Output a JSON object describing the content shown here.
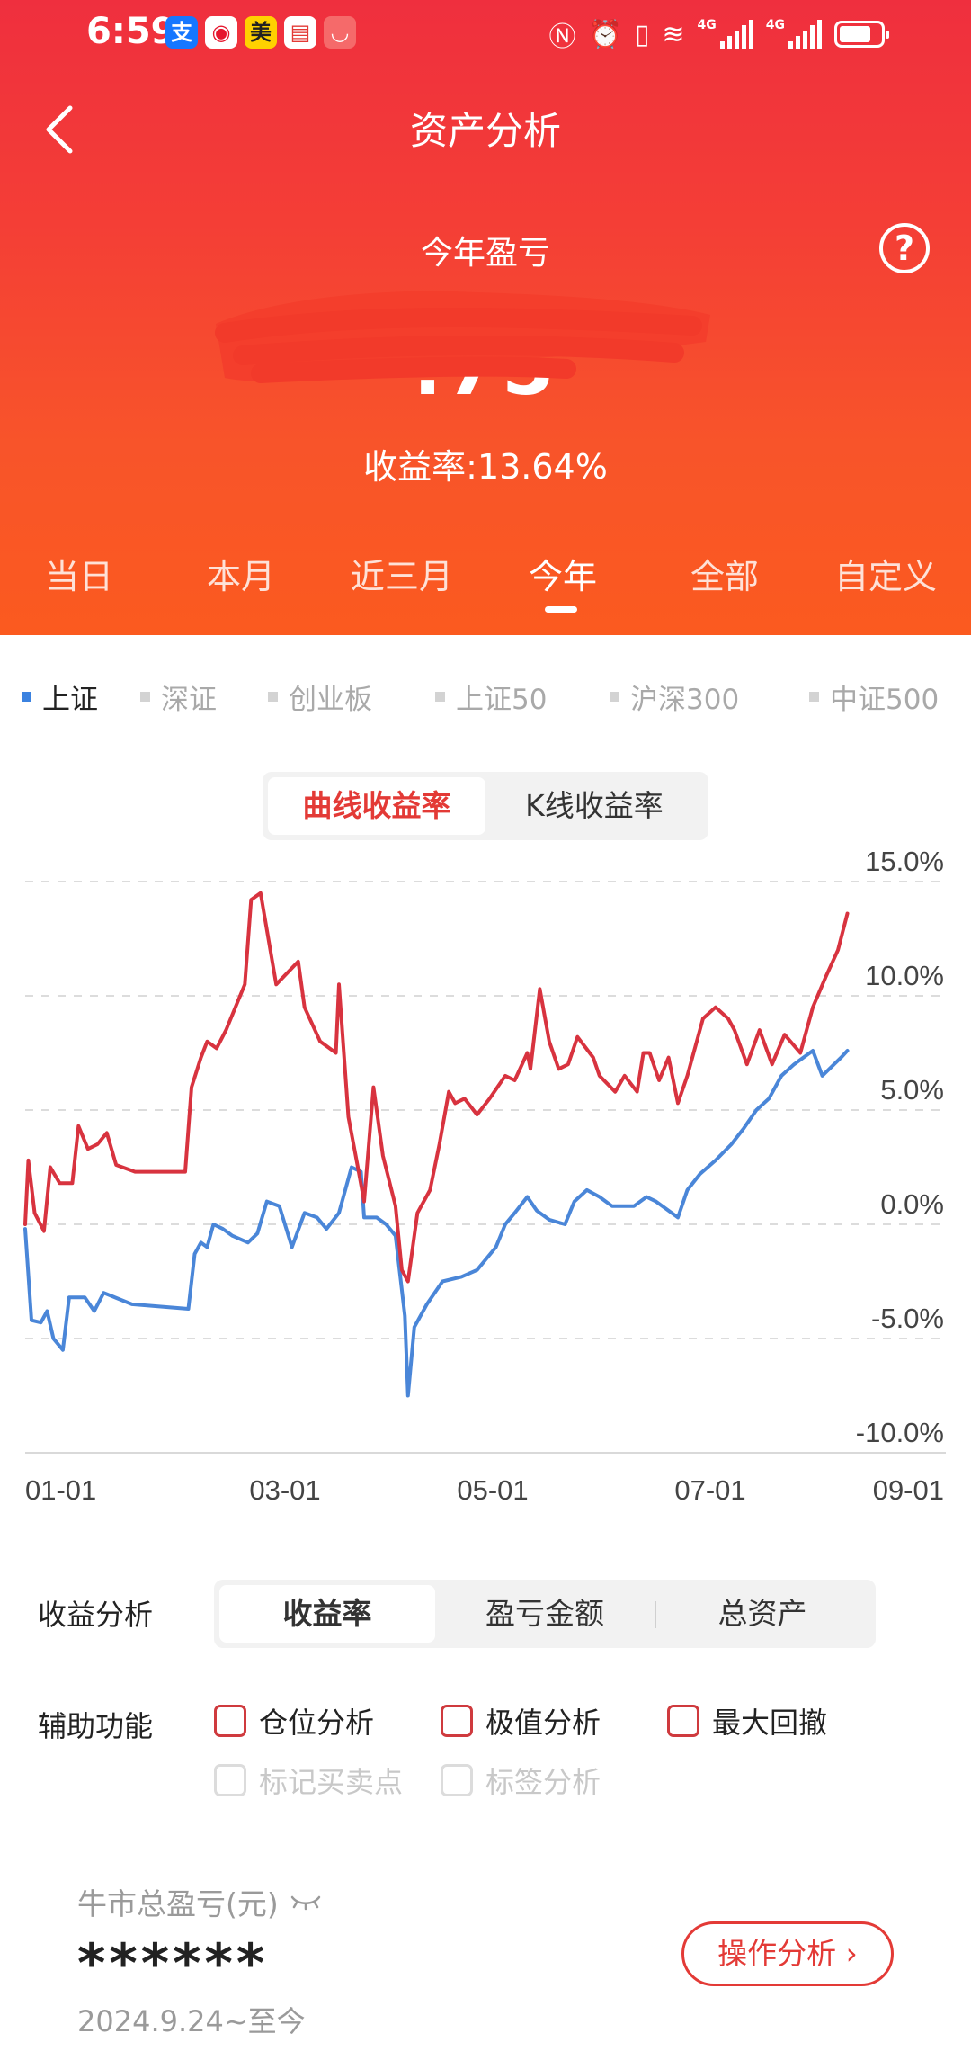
{
  "status_bar": {
    "time": "6:59",
    "apps": [
      {
        "name": "alipay-icon",
        "glyph": "支",
        "bg": "#1677ff",
        "fg": "#ffffff"
      },
      {
        "name": "weibo-icon",
        "glyph": "◉",
        "bg": "#ffffff",
        "fg": "#e6162d"
      },
      {
        "name": "meituan-icon",
        "glyph": "美",
        "bg": "#ffd100",
        "fg": "#222222"
      },
      {
        "name": "reader-icon",
        "glyph": "▤",
        "bg": "#ffffff",
        "fg": "#e33a36"
      },
      {
        "name": "huawei-store-icon",
        "glyph": "◡",
        "bg": "#f56a6a",
        "fg": "#ffffff"
      }
    ],
    "network_label_1": "4G",
    "network_label_2": "4G",
    "battery_level": 0.7
  },
  "nav": {
    "title": "资产分析"
  },
  "summary": {
    "label": "今年盈亏",
    "amount_visible": "           .75",
    "return_rate": "收益率:13.64%"
  },
  "period_tabs": [
    "当日",
    "本月",
    "近三月",
    "今年",
    "全部",
    "自定义"
  ],
  "period_tabs_active": 3,
  "indices": [
    "上证",
    "深证",
    "创业板",
    "上证50",
    "沪深300",
    "中证500"
  ],
  "indices_active": 0,
  "chart_toggle": {
    "active": "曲线收益率",
    "inactive": "K线收益率"
  },
  "chart_data": {
    "type": "line",
    "title": "",
    "xlabel": "",
    "ylabel": "",
    "x_tick_labels": [
      "01-01",
      "03-01",
      "05-01",
      "07-01",
      "09-01"
    ],
    "y_tick_labels": [
      "15.0%",
      "10.0%",
      "5.0%",
      "0.0%",
      "-5.0%",
      "-10.0%"
    ],
    "ylim": [
      -10,
      15
    ],
    "xlim": [
      "01-01",
      "09-01"
    ],
    "grid": true,
    "series": [
      {
        "color": "#d8333f",
        "points": [
          [
            "01-01",
            0.0
          ],
          [
            "01-02",
            2.8
          ],
          [
            "01-04",
            0.5
          ],
          [
            "01-07",
            -0.3
          ],
          [
            "01-09",
            2.5
          ],
          [
            "01-12",
            1.8
          ],
          [
            "01-16",
            1.8
          ],
          [
            "01-18",
            4.3
          ],
          [
            "01-21",
            3.3
          ],
          [
            "01-24",
            3.5
          ],
          [
            "01-27",
            4.0
          ],
          [
            "01-30",
            2.6
          ],
          [
            "02-05",
            2.3
          ],
          [
            "02-21",
            2.3
          ],
          [
            "02-23",
            6.0
          ],
          [
            "02-26",
            7.3
          ],
          [
            "02-28",
            8.0
          ],
          [
            "03-02",
            7.7
          ],
          [
            "03-05",
            8.5
          ],
          [
            "03-11",
            10.5
          ],
          [
            "03-13",
            14.2
          ],
          [
            "03-16",
            14.5
          ],
          [
            "03-21",
            10.5
          ],
          [
            "03-28",
            11.5
          ],
          [
            "03-30",
            9.5
          ],
          [
            "04-04",
            8.0
          ],
          [
            "04-09",
            7.5
          ],
          [
            "04-10",
            10.5
          ],
          [
            "04-13",
            4.7
          ],
          [
            "04-16",
            2.5
          ],
          [
            "04-18",
            1.0
          ],
          [
            "04-21",
            6.0
          ],
          [
            "04-24",
            3.0
          ],
          [
            "04-28",
            0.8
          ],
          [
            "04-30",
            -2.0
          ],
          [
            "05-02",
            -2.5
          ],
          [
            "05-05",
            0.5
          ],
          [
            "05-09",
            1.5
          ],
          [
            "05-12",
            3.5
          ],
          [
            "05-15",
            5.8
          ],
          [
            "05-17",
            5.3
          ],
          [
            "05-20",
            5.5
          ],
          [
            "05-24",
            4.8
          ],
          [
            "05-28",
            5.5
          ],
          [
            "06-02",
            6.5
          ],
          [
            "06-05",
            6.3
          ],
          [
            "06-09",
            7.5
          ],
          [
            "06-10",
            6.8
          ],
          [
            "06-13",
            10.3
          ],
          [
            "06-16",
            8.0
          ],
          [
            "06-19",
            6.8
          ],
          [
            "06-22",
            7.0
          ],
          [
            "06-25",
            8.2
          ],
          [
            "06-30",
            7.3
          ],
          [
            "07-02",
            6.5
          ],
          [
            "07-07",
            5.8
          ],
          [
            "07-10",
            6.5
          ],
          [
            "07-14",
            5.8
          ],
          [
            "07-16",
            7.5
          ],
          [
            "07-18",
            7.5
          ],
          [
            "07-21",
            6.3
          ],
          [
            "07-24",
            7.3
          ],
          [
            "07-27",
            5.3
          ],
          [
            "07-30",
            6.5
          ],
          [
            "08-04",
            9.0
          ],
          [
            "08-08",
            9.5
          ],
          [
            "08-12",
            9.0
          ],
          [
            "08-14",
            8.5
          ],
          [
            "08-18",
            7.0
          ],
          [
            "08-22",
            8.5
          ],
          [
            "08-26",
            7.0
          ],
          [
            "08-30",
            8.3
          ],
          [
            "09-04",
            7.5
          ],
          [
            "09-08",
            9.5
          ],
          [
            "09-12",
            10.8
          ],
          [
            "09-16",
            12.0
          ],
          [
            "09-19",
            13.6
          ]
        ]
      },
      {
        "color": "#4a86d8",
        "points": [
          [
            "01-01",
            -0.2
          ],
          [
            "01-03",
            -4.2
          ],
          [
            "01-06",
            -4.3
          ],
          [
            "01-08",
            -3.8
          ],
          [
            "01-10",
            -5.0
          ],
          [
            "01-13",
            -5.5
          ],
          [
            "01-15",
            -3.2
          ],
          [
            "01-20",
            -3.2
          ],
          [
            "01-23",
            -3.8
          ],
          [
            "01-26",
            -3.0
          ],
          [
            "02-04",
            -3.5
          ],
          [
            "02-22",
            -3.7
          ],
          [
            "02-24",
            -1.3
          ],
          [
            "02-26",
            -0.8
          ],
          [
            "02-28",
            -1.0
          ],
          [
            "03-01",
            0.0
          ],
          [
            "03-04",
            -0.2
          ],
          [
            "03-07",
            -0.5
          ],
          [
            "03-12",
            -0.8
          ],
          [
            "03-15",
            -0.4
          ],
          [
            "03-18",
            1.0
          ],
          [
            "03-22",
            0.8
          ],
          [
            "03-26",
            -1.0
          ],
          [
            "03-30",
            0.5
          ],
          [
            "04-03",
            0.3
          ],
          [
            "04-06",
            -0.2
          ],
          [
            "04-10",
            0.5
          ],
          [
            "04-14",
            2.5
          ],
          [
            "04-17",
            2.3
          ],
          [
            "04-18",
            0.3
          ],
          [
            "04-22",
            0.3
          ],
          [
            "04-25",
            0.0
          ],
          [
            "04-28",
            -0.5
          ],
          [
            "05-01",
            -4.0
          ],
          [
            "05-02",
            -7.5
          ],
          [
            "05-04",
            -4.5
          ],
          [
            "05-08",
            -3.5
          ],
          [
            "05-13",
            -2.5
          ],
          [
            "05-19",
            -2.3
          ],
          [
            "05-24",
            -2.0
          ],
          [
            "05-30",
            -1.0
          ],
          [
            "06-02",
            0.0
          ],
          [
            "06-05",
            0.5
          ],
          [
            "06-09",
            1.2
          ],
          [
            "06-12",
            0.6
          ],
          [
            "06-16",
            0.2
          ],
          [
            "06-21",
            0.0
          ],
          [
            "06-24",
            1.0
          ],
          [
            "06-28",
            1.5
          ],
          [
            "07-02",
            1.2
          ],
          [
            "07-06",
            0.8
          ],
          [
            "07-09",
            0.8
          ],
          [
            "07-13",
            0.8
          ],
          [
            "07-17",
            1.2
          ],
          [
            "07-20",
            1.0
          ],
          [
            "07-25",
            0.5
          ],
          [
            "07-27",
            0.3
          ],
          [
            "07-30",
            1.5
          ],
          [
            "08-03",
            2.2
          ],
          [
            "08-08",
            2.8
          ],
          [
            "08-13",
            3.5
          ],
          [
            "08-17",
            4.2
          ],
          [
            "08-21",
            5.0
          ],
          [
            "08-25",
            5.5
          ],
          [
            "08-29",
            6.5
          ],
          [
            "09-02",
            7.0
          ],
          [
            "09-05",
            7.3
          ],
          [
            "09-08",
            7.6
          ],
          [
            "09-11",
            6.5
          ],
          [
            "09-14",
            6.9
          ],
          [
            "09-17",
            7.3
          ],
          [
            "09-19",
            7.6
          ]
        ]
      }
    ]
  },
  "analysis": {
    "label": "收益分析",
    "options": [
      "收益率",
      "盈亏金额",
      "总资产"
    ],
    "active": 0
  },
  "assist": {
    "label": "辅助功能",
    "options": [
      {
        "label": "仓位分析",
        "enabled": true
      },
      {
        "label": "极值分析",
        "enabled": true
      },
      {
        "label": "最大回撤",
        "enabled": true
      },
      {
        "label": "标记买卖点",
        "enabled": false
      },
      {
        "label": "标签分析",
        "enabled": false
      }
    ]
  },
  "bull_market": {
    "label": "牛市总盈亏(元)",
    "value": "******",
    "date_range": "2024.9.24~至今",
    "button": "操作分析 ›"
  }
}
